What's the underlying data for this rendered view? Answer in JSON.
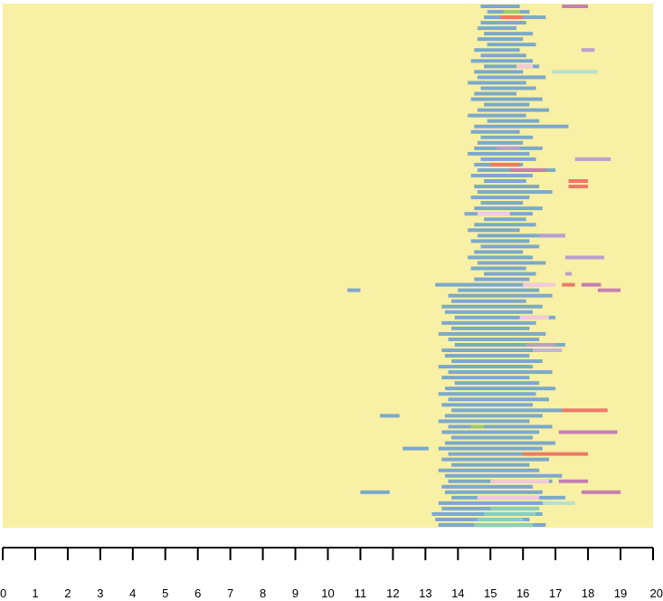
{
  "chart_data": {
    "type": "heatmap",
    "title": "",
    "xlabel": "",
    "ylabel": "",
    "xlim": [
      0,
      20
    ],
    "x_ticks": [
      0,
      1,
      2,
      3,
      4,
      5,
      6,
      7,
      8,
      9,
      10,
      11,
      12,
      13,
      14,
      15,
      16,
      17,
      18,
      19,
      20
    ],
    "x_tick_labels": [
      "0",
      "1",
      "2",
      "3",
      "4",
      "5",
      "6",
      "7",
      "8",
      "9",
      "10",
      "11",
      "12",
      "13",
      "14",
      "15",
      "16",
      "17",
      "18",
      "19",
      "20"
    ],
    "n_rows": 96,
    "background_color": "#f8f0a4",
    "colors": {
      "blue": "#7ba9cc",
      "pink": "#f6c8dc",
      "red": "#ec7a66",
      "purple": "#b99fd0",
      "magenta": "#c57fb2",
      "green": "#9fcc6e",
      "teal": "#8ccdbc",
      "lilac": "#c2b5d9",
      "mint": "#b8e0cc"
    },
    "legend": "none",
    "grid": false,
    "segments": [
      {
        "row": 0,
        "start": 14.7,
        "end": 15.9,
        "color": "blue"
      },
      {
        "row": 0,
        "start": 17.2,
        "end": 18.0,
        "color": "magenta"
      },
      {
        "row": 1,
        "start": 14.9,
        "end": 16.2,
        "color": "blue"
      },
      {
        "row": 1,
        "start": 15.4,
        "end": 15.9,
        "color": "green"
      },
      {
        "row": 2,
        "start": 14.8,
        "end": 16.7,
        "color": "blue"
      },
      {
        "row": 2,
        "start": 15.3,
        "end": 16.0,
        "color": "red"
      },
      {
        "row": 3,
        "start": 14.7,
        "end": 16.1,
        "color": "blue"
      },
      {
        "row": 4,
        "start": 14.6,
        "end": 15.8,
        "color": "blue"
      },
      {
        "row": 5,
        "start": 14.8,
        "end": 16.3,
        "color": "blue"
      },
      {
        "row": 6,
        "start": 14.6,
        "end": 16.0,
        "color": "blue"
      },
      {
        "row": 7,
        "start": 14.9,
        "end": 16.4,
        "color": "blue"
      },
      {
        "row": 8,
        "start": 14.5,
        "end": 15.9,
        "color": "blue"
      },
      {
        "row": 8,
        "start": 17.8,
        "end": 18.2,
        "color": "purple"
      },
      {
        "row": 9,
        "start": 14.7,
        "end": 16.1,
        "color": "blue"
      },
      {
        "row": 10,
        "start": 14.4,
        "end": 16.3,
        "color": "blue"
      },
      {
        "row": 11,
        "start": 14.8,
        "end": 16.5,
        "color": "blue"
      },
      {
        "row": 11,
        "start": 15.8,
        "end": 16.3,
        "color": "pink"
      },
      {
        "row": 12,
        "start": 14.5,
        "end": 16.0,
        "color": "blue"
      },
      {
        "row": 12,
        "start": 16.9,
        "end": 18.3,
        "color": "mint"
      },
      {
        "row": 13,
        "start": 14.6,
        "end": 16.7,
        "color": "blue"
      },
      {
        "row": 14,
        "start": 14.3,
        "end": 16.1,
        "color": "blue"
      },
      {
        "row": 15,
        "start": 14.7,
        "end": 16.4,
        "color": "blue"
      },
      {
        "row": 16,
        "start": 14.5,
        "end": 15.8,
        "color": "blue"
      },
      {
        "row": 17,
        "start": 14.4,
        "end": 16.6,
        "color": "blue"
      },
      {
        "row": 18,
        "start": 14.8,
        "end": 16.2,
        "color": "blue"
      },
      {
        "row": 19,
        "start": 14.6,
        "end": 16.8,
        "color": "blue"
      },
      {
        "row": 20,
        "start": 14.3,
        "end": 16.1,
        "color": "blue"
      },
      {
        "row": 21,
        "start": 14.9,
        "end": 16.5,
        "color": "blue"
      },
      {
        "row": 22,
        "start": 14.5,
        "end": 17.4,
        "color": "blue"
      },
      {
        "row": 23,
        "start": 14.4,
        "end": 15.9,
        "color": "blue"
      },
      {
        "row": 24,
        "start": 14.7,
        "end": 16.3,
        "color": "blue"
      },
      {
        "row": 25,
        "start": 14.6,
        "end": 16.0,
        "color": "blue"
      },
      {
        "row": 26,
        "start": 14.5,
        "end": 16.6,
        "color": "blue"
      },
      {
        "row": 26,
        "start": 15.2,
        "end": 15.9,
        "color": "purple"
      },
      {
        "row": 27,
        "start": 14.3,
        "end": 16.2,
        "color": "blue"
      },
      {
        "row": 28,
        "start": 14.7,
        "end": 16.4,
        "color": "blue"
      },
      {
        "row": 28,
        "start": 17.6,
        "end": 18.7,
        "color": "purple"
      },
      {
        "row": 29,
        "start": 14.5,
        "end": 16.0,
        "color": "blue"
      },
      {
        "row": 29,
        "start": 15.0,
        "end": 15.9,
        "color": "red"
      },
      {
        "row": 30,
        "start": 14.6,
        "end": 17.0,
        "color": "blue"
      },
      {
        "row": 30,
        "start": 15.6,
        "end": 16.7,
        "color": "magenta"
      },
      {
        "row": 31,
        "start": 14.4,
        "end": 16.3,
        "color": "blue"
      },
      {
        "row": 32,
        "start": 14.8,
        "end": 16.1,
        "color": "blue"
      },
      {
        "row": 32,
        "start": 17.4,
        "end": 18.0,
        "color": "red"
      },
      {
        "row": 33,
        "start": 14.5,
        "end": 16.5,
        "color": "blue"
      },
      {
        "row": 33,
        "start": 17.4,
        "end": 18.0,
        "color": "red"
      },
      {
        "row": 34,
        "start": 14.6,
        "end": 16.9,
        "color": "blue"
      },
      {
        "row": 35,
        "start": 14.4,
        "end": 16.2,
        "color": "blue"
      },
      {
        "row": 36,
        "start": 14.7,
        "end": 16.0,
        "color": "blue"
      },
      {
        "row": 37,
        "start": 14.5,
        "end": 16.6,
        "color": "blue"
      },
      {
        "row": 38,
        "start": 14.2,
        "end": 16.3,
        "color": "blue"
      },
      {
        "row": 38,
        "start": 14.6,
        "end": 15.6,
        "color": "pink"
      },
      {
        "row": 39,
        "start": 14.8,
        "end": 16.1,
        "color": "blue"
      },
      {
        "row": 40,
        "start": 14.5,
        "end": 16.4,
        "color": "blue"
      },
      {
        "row": 41,
        "start": 14.3,
        "end": 15.9,
        "color": "blue"
      },
      {
        "row": 42,
        "start": 14.6,
        "end": 17.3,
        "color": "blue"
      },
      {
        "row": 42,
        "start": 16.5,
        "end": 17.3,
        "color": "purple"
      },
      {
        "row": 43,
        "start": 14.4,
        "end": 16.2,
        "color": "blue"
      },
      {
        "row": 44,
        "start": 14.7,
        "end": 16.5,
        "color": "blue"
      },
      {
        "row": 45,
        "start": 14.5,
        "end": 16.0,
        "color": "blue"
      },
      {
        "row": 46,
        "start": 14.3,
        "end": 16.3,
        "color": "blue"
      },
      {
        "row": 46,
        "start": 17.3,
        "end": 18.5,
        "color": "purple"
      },
      {
        "row": 47,
        "start": 14.6,
        "end": 16.7,
        "color": "blue"
      },
      {
        "row": 48,
        "start": 14.4,
        "end": 16.1,
        "color": "blue"
      },
      {
        "row": 49,
        "start": 14.8,
        "end": 16.4,
        "color": "blue"
      },
      {
        "row": 49,
        "start": 17.3,
        "end": 17.5,
        "color": "purple"
      },
      {
        "row": 50,
        "start": 14.5,
        "end": 16.2,
        "color": "blue"
      },
      {
        "row": 51,
        "start": 13.3,
        "end": 16.8,
        "color": "blue"
      },
      {
        "row": 51,
        "start": 16.0,
        "end": 17.0,
        "color": "pink"
      },
      {
        "row": 51,
        "start": 17.8,
        "end": 18.4,
        "color": "magenta"
      },
      {
        "row": 51,
        "start": 17.2,
        "end": 17.6,
        "color": "red"
      },
      {
        "row": 52,
        "start": 14.0,
        "end": 16.5,
        "color": "blue"
      },
      {
        "row": 52,
        "start": 18.3,
        "end": 19.0,
        "color": "magenta"
      },
      {
        "row": 52,
        "start": 10.6,
        "end": 11.0,
        "color": "blue"
      },
      {
        "row": 53,
        "start": 13.7,
        "end": 16.9,
        "color": "blue"
      },
      {
        "row": 54,
        "start": 13.8,
        "end": 16.1,
        "color": "blue"
      },
      {
        "row": 55,
        "start": 13.5,
        "end": 16.6,
        "color": "blue"
      },
      {
        "row": 56,
        "start": 13.6,
        "end": 16.3,
        "color": "blue"
      },
      {
        "row": 57,
        "start": 13.9,
        "end": 17.0,
        "color": "blue"
      },
      {
        "row": 57,
        "start": 15.9,
        "end": 16.8,
        "color": "pink"
      },
      {
        "row": 58,
        "start": 13.5,
        "end": 16.4,
        "color": "blue"
      },
      {
        "row": 59,
        "start": 13.8,
        "end": 16.2,
        "color": "blue"
      },
      {
        "row": 60,
        "start": 13.4,
        "end": 16.7,
        "color": "blue"
      },
      {
        "row": 61,
        "start": 13.7,
        "end": 16.5,
        "color": "blue"
      },
      {
        "row": 62,
        "start": 13.9,
        "end": 17.3,
        "color": "blue"
      },
      {
        "row": 62,
        "start": 16.1,
        "end": 17.0,
        "color": "purple"
      },
      {
        "row": 63,
        "start": 13.5,
        "end": 16.4,
        "color": "blue"
      },
      {
        "row": 63,
        "start": 16.3,
        "end": 17.2,
        "color": "lilac"
      },
      {
        "row": 64,
        "start": 13.6,
        "end": 16.2,
        "color": "blue"
      },
      {
        "row": 65,
        "start": 13.8,
        "end": 16.6,
        "color": "blue"
      },
      {
        "row": 66,
        "start": 13.4,
        "end": 16.3,
        "color": "blue"
      },
      {
        "row": 67,
        "start": 13.7,
        "end": 16.9,
        "color": "blue"
      },
      {
        "row": 68,
        "start": 13.5,
        "end": 16.2,
        "color": "blue"
      },
      {
        "row": 69,
        "start": 13.9,
        "end": 16.5,
        "color": "blue"
      },
      {
        "row": 70,
        "start": 13.6,
        "end": 17.0,
        "color": "blue"
      },
      {
        "row": 71,
        "start": 13.4,
        "end": 16.4,
        "color": "blue"
      },
      {
        "row": 72,
        "start": 13.7,
        "end": 16.8,
        "color": "blue"
      },
      {
        "row": 73,
        "start": 13.5,
        "end": 16.3,
        "color": "blue"
      },
      {
        "row": 74,
        "start": 13.8,
        "end": 17.2,
        "color": "blue"
      },
      {
        "row": 74,
        "start": 17.2,
        "end": 18.6,
        "color": "red"
      },
      {
        "row": 75,
        "start": 11.6,
        "end": 12.2,
        "color": "blue"
      },
      {
        "row": 75,
        "start": 13.6,
        "end": 16.6,
        "color": "blue"
      },
      {
        "row": 76,
        "start": 13.4,
        "end": 16.2,
        "color": "blue"
      },
      {
        "row": 77,
        "start": 13.7,
        "end": 16.9,
        "color": "blue"
      },
      {
        "row": 77,
        "start": 14.4,
        "end": 14.8,
        "color": "green"
      },
      {
        "row": 78,
        "start": 13.5,
        "end": 16.5,
        "color": "blue"
      },
      {
        "row": 78,
        "start": 17.1,
        "end": 18.9,
        "color": "magenta"
      },
      {
        "row": 79,
        "start": 13.8,
        "end": 16.3,
        "color": "blue"
      },
      {
        "row": 80,
        "start": 13.6,
        "end": 17.0,
        "color": "blue"
      },
      {
        "row": 81,
        "start": 13.4,
        "end": 16.6,
        "color": "blue"
      },
      {
        "row": 81,
        "start": 12.3,
        "end": 13.1,
        "color": "blue"
      },
      {
        "row": 82,
        "start": 13.7,
        "end": 16.4,
        "color": "blue"
      },
      {
        "row": 82,
        "start": 16.0,
        "end": 18.0,
        "color": "red"
      },
      {
        "row": 83,
        "start": 13.5,
        "end": 16.8,
        "color": "blue"
      },
      {
        "row": 84,
        "start": 13.8,
        "end": 16.2,
        "color": "blue"
      },
      {
        "row": 85,
        "start": 13.4,
        "end": 16.5,
        "color": "blue"
      },
      {
        "row": 86,
        "start": 13.6,
        "end": 17.2,
        "color": "blue"
      },
      {
        "row": 87,
        "start": 13.7,
        "end": 16.9,
        "color": "blue"
      },
      {
        "row": 87,
        "start": 15.0,
        "end": 16.8,
        "color": "pink"
      },
      {
        "row": 87,
        "start": 17.1,
        "end": 18.0,
        "color": "magenta"
      },
      {
        "row": 88,
        "start": 13.5,
        "end": 16.3,
        "color": "blue"
      },
      {
        "row": 89,
        "start": 11.0,
        "end": 11.9,
        "color": "blue"
      },
      {
        "row": 89,
        "start": 13.6,
        "end": 16.6,
        "color": "blue"
      },
      {
        "row": 89,
        "start": 17.8,
        "end": 19.0,
        "color": "magenta"
      },
      {
        "row": 90,
        "start": 13.8,
        "end": 17.3,
        "color": "blue"
      },
      {
        "row": 90,
        "start": 14.6,
        "end": 16.5,
        "color": "pink"
      },
      {
        "row": 91,
        "start": 13.4,
        "end": 16.8,
        "color": "blue"
      },
      {
        "row": 91,
        "start": 16.6,
        "end": 17.6,
        "color": "mint"
      },
      {
        "row": 92,
        "start": 13.5,
        "end": 16.4,
        "color": "blue"
      },
      {
        "row": 92,
        "start": 15.0,
        "end": 16.5,
        "color": "teal"
      },
      {
        "row": 93,
        "start": 13.2,
        "end": 16.6,
        "color": "blue"
      },
      {
        "row": 93,
        "start": 14.8,
        "end": 16.4,
        "color": "teal"
      },
      {
        "row": 94,
        "start": 13.3,
        "end": 16.2,
        "color": "blue"
      },
      {
        "row": 94,
        "start": 14.6,
        "end": 16.0,
        "color": "teal"
      },
      {
        "row": 95,
        "start": 13.4,
        "end": 16.7,
        "color": "blue"
      },
      {
        "row": 95,
        "start": 14.5,
        "end": 16.3,
        "color": "teal"
      }
    ]
  }
}
